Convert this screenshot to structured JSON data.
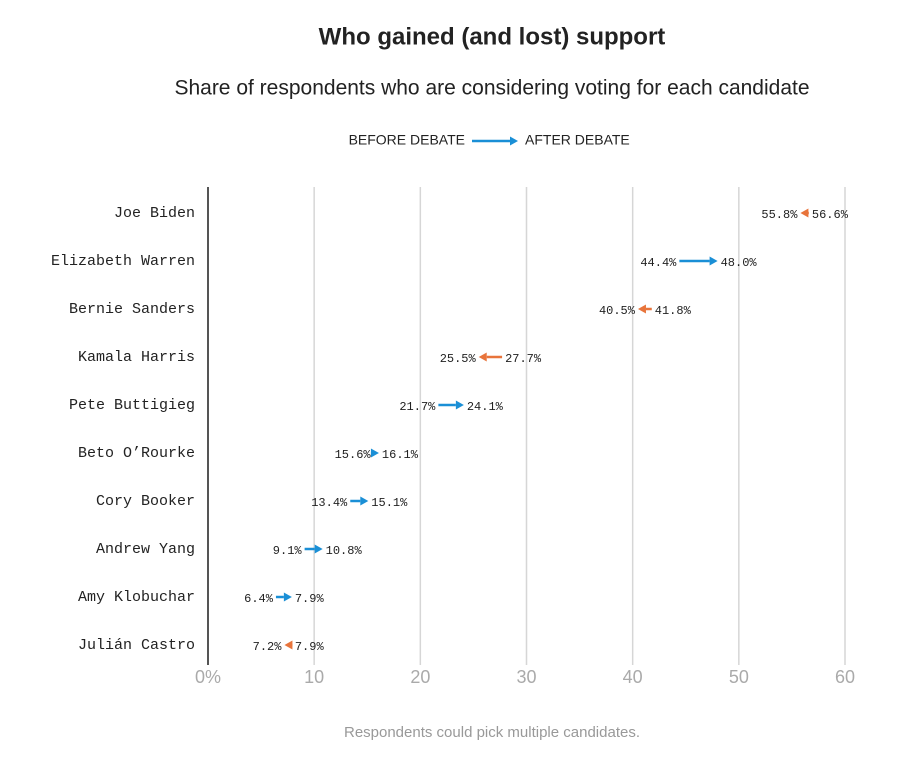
{
  "chart_data": {
    "type": "arrow",
    "title": "Who gained (and lost) support",
    "subtitle": "Share of respondents who are considering voting for each candidate",
    "categories": [
      "Joe Biden",
      "Elizabeth Warren",
      "Bernie Sanders",
      "Kamala Harris",
      "Pete Buttigieg",
      "Beto O’Rourke",
      "Cory Booker",
      "Andrew Yang",
      "Amy Klobuchar",
      "Julián Castro"
    ],
    "series": [
      {
        "name": "BEFORE DEBATE",
        "values": [
          56.6,
          44.4,
          41.8,
          27.7,
          21.7,
          15.6,
          13.4,
          9.1,
          6.4,
          7.9
        ],
        "value_labels": [
          "56.6%",
          "44.4%",
          "41.8%",
          "27.7%",
          "21.7%",
          "15.6%",
          "13.4%",
          "9.1%",
          "6.4%",
          "7.9%"
        ]
      },
      {
        "name": "AFTER DEBATE",
        "values": [
          55.8,
          48.0,
          40.5,
          25.5,
          24.1,
          16.1,
          15.1,
          10.8,
          7.9,
          7.2
        ],
        "value_labels": [
          "55.8%",
          "48.0%",
          "40.5%",
          "25.5%",
          "24.1%",
          "16.1%",
          "15.1%",
          "10.8%",
          "7.9%",
          "7.2%"
        ]
      }
    ],
    "gain_color": "#1a8fd6",
    "loss_color": "#e8743b",
    "xlim": [
      0,
      60
    ],
    "xticks": [
      {
        "value": 0,
        "label": "0%"
      },
      10,
      20,
      30,
      40,
      50,
      60
    ],
    "grid": true,
    "note": "Respondents could pick multiple candidates."
  }
}
